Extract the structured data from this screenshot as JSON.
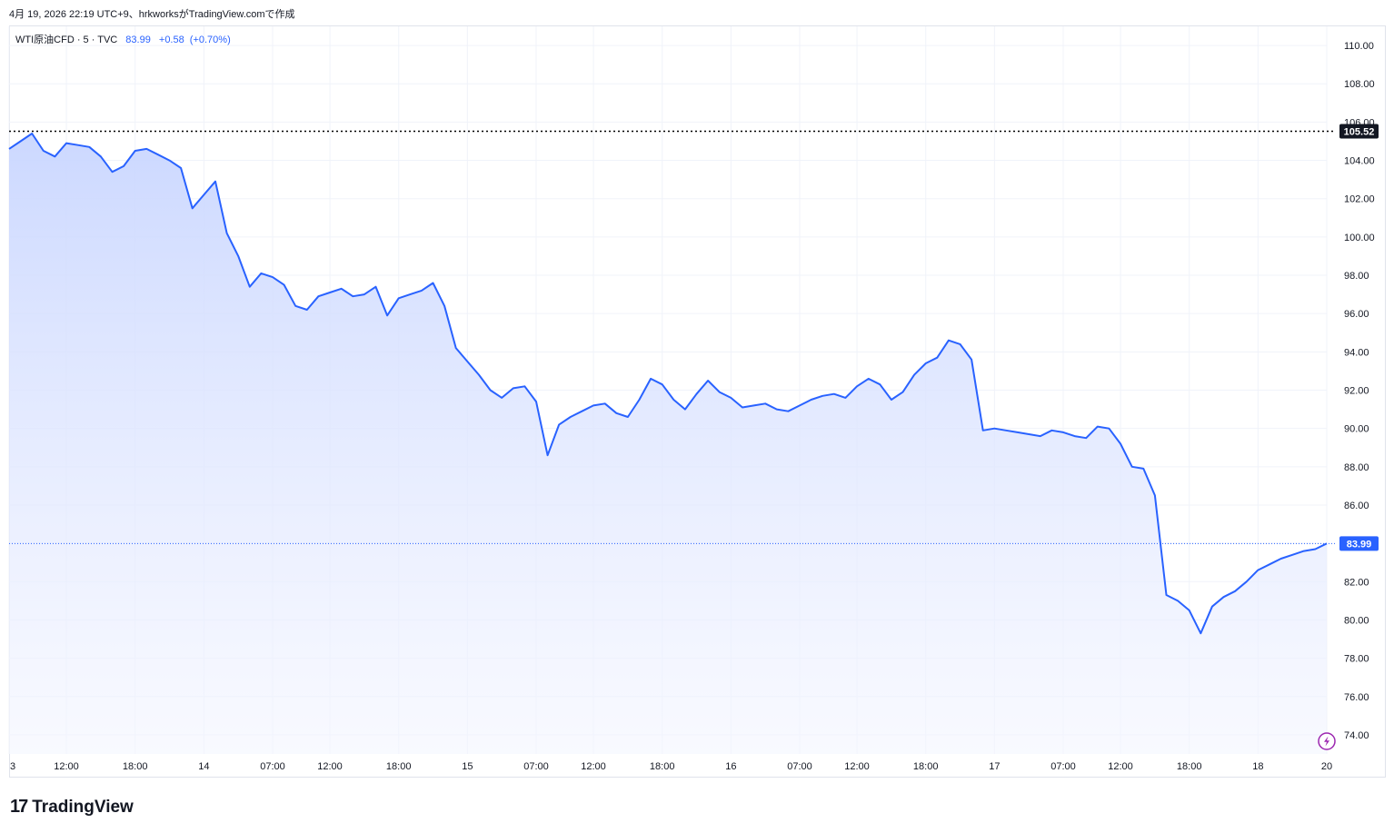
{
  "header": {
    "caption": "4月 19, 2026 22:19 UTC+9、hrkworksがTradingView.comで作成"
  },
  "legend": {
    "symbol": "WTI原油CFD · 5 · TVC",
    "last": "83.99",
    "change": "+0.58",
    "change_pct": "(+0.70%)"
  },
  "branding": {
    "name": "TradingView",
    "mark": "17"
  },
  "colors": {
    "line": "#2962ff",
    "fill_top": "#c9d6ff",
    "fill_bottom": "#f4f6ff",
    "grid": "#f0f3fa",
    "high_line": "#000000"
  },
  "icons": {
    "lightning": "lightning-icon"
  },
  "chart_data": {
    "type": "area",
    "title": "",
    "ylim": [
      73,
      111
    ],
    "y_ticks": [
      74,
      76,
      78,
      80,
      82,
      84,
      86,
      88,
      90,
      92,
      94,
      96,
      98,
      100,
      102,
      104,
      106,
      108,
      110
    ],
    "y_tick_labels": [
      "74.00",
      "76.00",
      "78.00",
      "80.00",
      "82.00",
      "84.00",
      "86.00",
      "88.00",
      "90.00",
      "92.00",
      "94.00",
      "96.00",
      "98.00",
      "100.00",
      "102.00",
      "104.00",
      "106.00",
      "108.00",
      "110.00"
    ],
    "x_tick_labels": [
      "3",
      "12:00",
      "18:00",
      "14",
      "07:00",
      "12:00",
      "18:00",
      "15",
      "07:00",
      "12:00",
      "18:00",
      "16",
      "07:00",
      "12:00",
      "18:00",
      "17",
      "07:00",
      "12:00",
      "18:00",
      "18",
      "20"
    ],
    "x_tick_index": [
      0,
      5,
      11,
      17,
      23,
      28,
      34,
      40,
      46,
      51,
      57,
      63,
      69,
      74,
      80,
      86,
      92,
      97,
      103,
      109,
      115
    ],
    "grid": true,
    "high_value": 105.52,
    "high_label": "105.52",
    "last_value": 83.99,
    "last_label": "83.99",
    "series": [
      {
        "values": [
          104.6,
          105.0,
          105.4,
          104.5,
          104.2,
          104.9,
          104.8,
          104.7,
          104.2,
          103.4,
          103.7,
          104.5,
          104.6,
          104.3,
          104.0,
          103.6,
          101.5,
          102.2,
          102.9,
          100.2,
          99.0,
          97.4,
          98.1,
          97.9,
          97.5,
          96.4,
          96.2,
          96.9,
          97.1,
          97.3,
          96.9,
          97.0,
          97.4,
          95.9,
          96.8,
          97.0,
          97.2,
          97.6,
          96.4,
          94.2,
          93.5,
          92.8,
          92.0,
          91.6,
          92.1,
          92.2,
          91.4,
          88.6,
          90.2,
          90.6,
          90.9,
          91.2,
          91.3,
          90.8,
          90.6,
          91.5,
          92.6,
          92.3,
          91.5,
          91.0,
          91.8,
          92.5,
          91.9,
          91.6,
          91.1,
          91.2,
          91.3,
          91.0,
          90.9,
          91.2,
          91.5,
          91.7,
          91.8,
          91.6,
          92.2,
          92.6,
          92.3,
          91.5,
          91.9,
          92.8,
          93.4,
          93.7,
          94.6,
          94.4,
          93.6,
          89.9,
          90.0,
          89.9,
          89.8,
          89.7,
          89.6,
          89.9,
          89.8,
          89.6,
          89.5,
          90.1,
          90.0,
          89.2,
          88.0,
          87.9,
          86.5,
          81.3,
          81.0,
          80.5,
          79.3,
          80.7,
          81.2,
          81.5,
          82.0,
          82.6,
          82.9,
          83.2,
          83.4,
          83.6,
          83.7,
          83.99
        ]
      }
    ]
  }
}
